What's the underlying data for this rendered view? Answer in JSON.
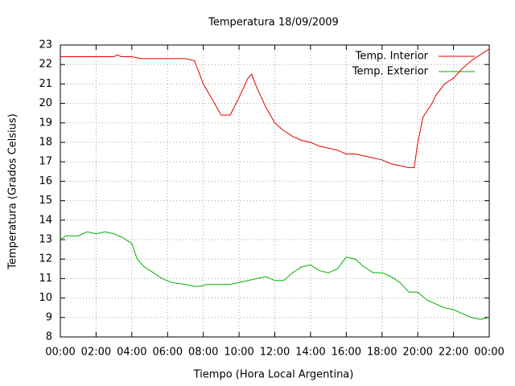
{
  "chart_data": {
    "type": "line",
    "title": "Temperatura 18/09/2009",
    "x_label": "Tiempo (Hora Local Argentina)",
    "y_label": "Temperatura (Grados Celsius)",
    "xlim": [
      0,
      24
    ],
    "ylim": [
      8,
      23
    ],
    "xticks": [
      {
        "value": 0,
        "label": "00:00"
      },
      {
        "value": 2,
        "label": "02:00"
      },
      {
        "value": 4,
        "label": "04:00"
      },
      {
        "value": 6,
        "label": "06:00"
      },
      {
        "value": 8,
        "label": "08:00"
      },
      {
        "value": 10,
        "label": "10:00"
      },
      {
        "value": 12,
        "label": "12:00"
      },
      {
        "value": 14,
        "label": "14:00"
      },
      {
        "value": 16,
        "label": "16:00"
      },
      {
        "value": 18,
        "label": "18:00"
      },
      {
        "value": 20,
        "label": "20:00"
      },
      {
        "value": 22,
        "label": "22:00"
      },
      {
        "value": 24,
        "label": "00:00"
      }
    ],
    "yticks": [
      8,
      9,
      10,
      11,
      12,
      13,
      14,
      15,
      16,
      17,
      18,
      19,
      20,
      21,
      22,
      23
    ],
    "grid": true,
    "legend_position": "top-right",
    "series": [
      {
        "name": "Temp. Interior",
        "color": "#e00000",
        "x": [
          0,
          1,
          2,
          3,
          3.2,
          3.4,
          4,
          4.5,
          5,
          6,
          7,
          7.5,
          8,
          8.5,
          9,
          9.5,
          10,
          10.5,
          10.7,
          11,
          11.5,
          12,
          12.5,
          13,
          13.5,
          14,
          14.5,
          15,
          15.5,
          16,
          16.5,
          17,
          17.5,
          18,
          18.5,
          19,
          19.5,
          19.8,
          20,
          20.3,
          20.8,
          21,
          21.5,
          22,
          22.5,
          23,
          23.5,
          24
        ],
        "values": [
          22.4,
          22.4,
          22.4,
          22.4,
          22.5,
          22.4,
          22.4,
          22.3,
          22.3,
          22.3,
          22.3,
          22.2,
          21.0,
          20.2,
          19.4,
          19.4,
          20.3,
          21.3,
          21.5,
          20.8,
          19.8,
          19.0,
          18.6,
          18.3,
          18.1,
          18.0,
          17.8,
          17.7,
          17.6,
          17.4,
          17.4,
          17.3,
          17.2,
          17.1,
          16.9,
          16.8,
          16.7,
          16.7,
          18.0,
          19.3,
          20.0,
          20.4,
          21.0,
          21.3,
          21.8,
          22.2,
          22.5,
          22.8
        ]
      },
      {
        "name": "Temp. Exterior",
        "color": "#00b000",
        "x": [
          0,
          0.3,
          1,
          1.5,
          2,
          2.5,
          3,
          3.5,
          4,
          4.3,
          4.7,
          5.2,
          5.7,
          6.2,
          7,
          7.5,
          7.8,
          8.2,
          9,
          9.5,
          10,
          11,
          11.5,
          12,
          12.5,
          13,
          13.5,
          14,
          14.5,
          15,
          15.5,
          16,
          16.5,
          17,
          17.5,
          18,
          18.5,
          19,
          19.5,
          20,
          20.5,
          21,
          21.5,
          22,
          22.5,
          23,
          23.5,
          24
        ],
        "values": [
          13.0,
          13.2,
          13.2,
          13.4,
          13.3,
          13.4,
          13.3,
          13.1,
          12.8,
          12.0,
          11.6,
          11.3,
          11.0,
          10.8,
          10.7,
          10.6,
          10.6,
          10.7,
          10.7,
          10.7,
          10.8,
          11.0,
          11.1,
          10.9,
          10.9,
          11.3,
          11.6,
          11.7,
          11.4,
          11.3,
          11.5,
          12.1,
          12.0,
          11.6,
          11.3,
          11.3,
          11.1,
          10.8,
          10.3,
          10.3,
          9.9,
          9.7,
          9.5,
          9.4,
          9.2,
          9.0,
          8.9,
          9.0
        ]
      }
    ]
  }
}
